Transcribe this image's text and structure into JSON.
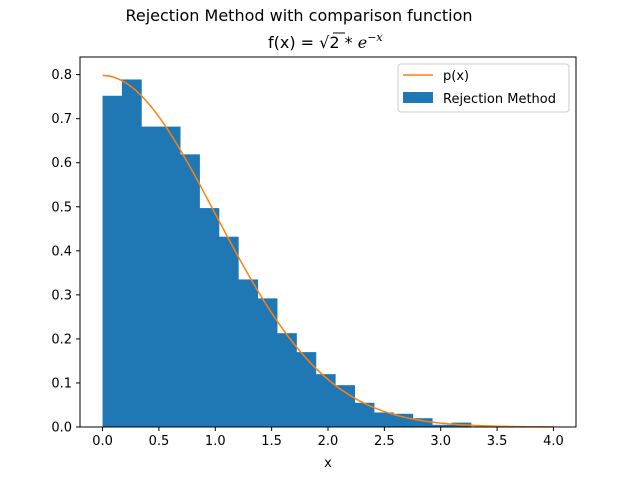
{
  "chart_data": {
    "type": "bar",
    "suptitle": "Rejection Method with comparison function",
    "title": {
      "prefix": "f(x) = ",
      "radicand": "2",
      "mult": " * ",
      "base": "e",
      "exponent": "−x"
    },
    "xlabel": "x",
    "ylabel": "",
    "xlim": [
      -0.2,
      4.2
    ],
    "ylim": [
      0,
      0.84
    ],
    "xticks": [
      0.0,
      0.5,
      1.0,
      1.5,
      2.0,
      2.5,
      3.0,
      3.5,
      4.0
    ],
    "xtick_labels": [
      "0.0",
      "0.5",
      "1.0",
      "1.5",
      "2.0",
      "2.5",
      "3.0",
      "3.5",
      "4.0"
    ],
    "yticks": [
      0.0,
      0.1,
      0.2,
      0.3,
      0.4,
      0.5,
      0.6,
      0.7,
      0.8
    ],
    "ytick_labels": [
      "0.0",
      "0.1",
      "0.2",
      "0.3",
      "0.4",
      "0.5",
      "0.6",
      "0.7",
      "0.8"
    ],
    "grid": false,
    "legend_position": "upper right",
    "histogram": {
      "name": "Rejection Method",
      "color": "#1f77b4",
      "bin_edges": [
        0.0,
        0.172,
        0.344,
        0.516,
        0.688,
        0.86,
        1.032,
        1.204,
        1.376,
        1.548,
        1.72,
        1.892,
        2.064,
        2.236,
        2.408,
        2.58,
        2.752,
        2.924,
        3.096,
        3.268,
        3.44
      ],
      "values": [
        0.752,
        0.789,
        0.682,
        0.682,
        0.619,
        0.497,
        0.432,
        0.335,
        0.292,
        0.213,
        0.17,
        0.12,
        0.095,
        0.055,
        0.033,
        0.03,
        0.02,
        0.005,
        0.01,
        0.0
      ]
    },
    "line": {
      "name": "p(x)",
      "color": "#ff7f0e",
      "x_start": 0.0,
      "x_end": 4.0,
      "peak_value": 0.798
    }
  }
}
